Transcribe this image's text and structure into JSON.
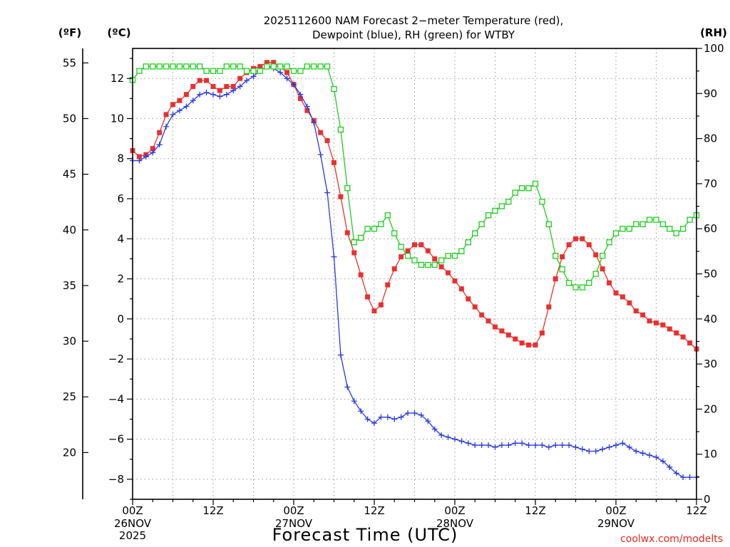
{
  "chart_data": {
    "type": "line",
    "title": "2025112600 NAM Forecast 2−meter Temperature (red),",
    "subtitle": "Dewpoint (blue), RH (green) for WTBY",
    "xlabel": "Forecast Time (UTC)",
    "credit": "coolwx.com/modelts",
    "left_axis_f": {
      "label": "(ºF)",
      "ticks": [
        20,
        25,
        30,
        35,
        40,
        45,
        50,
        55
      ],
      "tick_labels": [
        "20",
        "25",
        "30",
        "35",
        "40",
        "45",
        "50",
        "55"
      ]
    },
    "left_axis_c": {
      "label": "(ºC)",
      "ylim": [
        -9,
        13.5
      ],
      "ticks": [
        -8,
        -6,
        -4,
        -2,
        0,
        2,
        4,
        6,
        8,
        10,
        12
      ],
      "tick_labels": [
        "−8",
        "−6",
        "−4",
        "−2",
        "0",
        "2",
        "4",
        "6",
        "8",
        "10",
        "12"
      ]
    },
    "right_axis": {
      "label": "(RH)",
      "ylim": [
        0,
        100
      ],
      "ticks": [
        0,
        10,
        20,
        30,
        40,
        50,
        60,
        70,
        80,
        90,
        100
      ],
      "tick_labels": [
        "0",
        "10",
        "20",
        "30",
        "40",
        "50",
        "60",
        "70",
        "80",
        "90",
        "100"
      ]
    },
    "x_axis": {
      "xlim": [
        0,
        84
      ],
      "unit": "hours since 00Z 26NOV",
      "ticks": [
        {
          "x": 0,
          "label": "00Z",
          "date": "26NOV",
          "year": "2025"
        },
        {
          "x": 12,
          "label": "12Z",
          "date": "",
          "year": ""
        },
        {
          "x": 24,
          "label": "00Z",
          "date": "27NOV",
          "year": ""
        },
        {
          "x": 36,
          "label": "12Z",
          "date": "",
          "year": ""
        },
        {
          "x": 48,
          "label": "00Z",
          "date": "28NOV",
          "year": ""
        },
        {
          "x": 60,
          "label": "12Z",
          "date": "",
          "year": ""
        },
        {
          "x": 72,
          "label": "00Z",
          "date": "29NOV",
          "year": ""
        },
        {
          "x": 84,
          "label": "12Z",
          "date": "",
          "year": ""
        }
      ]
    },
    "series": [
      {
        "name": "2-meter Temperature",
        "color": "#e83030",
        "axis": "celsius",
        "marker": "filled-square",
        "points": [
          [
            0,
            8.4
          ],
          [
            1,
            8.1
          ],
          [
            2,
            8.2
          ],
          [
            3,
            8.5
          ],
          [
            4,
            9.3
          ],
          [
            5,
            10.2
          ],
          [
            6,
            10.7
          ],
          [
            7,
            10.9
          ],
          [
            8,
            11.2
          ],
          [
            9,
            11.6
          ],
          [
            10,
            11.9
          ],
          [
            11,
            11.9
          ],
          [
            12,
            11.6
          ],
          [
            13,
            11.4
          ],
          [
            14,
            11.6
          ],
          [
            15,
            11.6
          ],
          [
            16,
            12.0
          ],
          [
            17,
            12.3
          ],
          [
            18,
            12.5
          ],
          [
            19,
            12.6
          ],
          [
            20,
            12.8
          ],
          [
            21,
            12.8
          ],
          [
            22,
            12.6
          ],
          [
            23,
            12.3
          ],
          [
            24,
            11.7
          ],
          [
            25,
            11.0
          ],
          [
            26,
            10.4
          ],
          [
            27,
            9.9
          ],
          [
            28,
            9.3
          ],
          [
            29,
            8.9
          ],
          [
            30,
            7.8
          ],
          [
            31,
            6.1
          ],
          [
            32,
            4.3
          ],
          [
            33,
            3.3
          ],
          [
            34,
            2.2
          ],
          [
            35,
            1.1
          ],
          [
            36,
            0.4
          ],
          [
            37,
            0.7
          ],
          [
            38,
            1.7
          ],
          [
            39,
            2.5
          ],
          [
            40,
            3.1
          ],
          [
            41,
            3.4
          ],
          [
            42,
            3.7
          ],
          [
            43,
            3.7
          ],
          [
            44,
            3.4
          ],
          [
            45,
            3.0
          ],
          [
            46,
            2.6
          ],
          [
            47,
            2.3
          ],
          [
            48,
            1.9
          ],
          [
            49,
            1.5
          ],
          [
            50,
            1.0
          ],
          [
            51,
            0.6
          ],
          [
            52,
            0.2
          ],
          [
            53,
            -0.1
          ],
          [
            54,
            -0.4
          ],
          [
            55,
            -0.6
          ],
          [
            56,
            -0.8
          ],
          [
            57,
            -1.0
          ],
          [
            58,
            -1.2
          ],
          [
            59,
            -1.3
          ],
          [
            60,
            -1.3
          ],
          [
            61,
            -0.7
          ],
          [
            62,
            0.6
          ],
          [
            63,
            2.0
          ],
          [
            64,
            3.1
          ],
          [
            65,
            3.7
          ],
          [
            66,
            4.0
          ],
          [
            67,
            4.0
          ],
          [
            68,
            3.7
          ],
          [
            69,
            3.2
          ],
          [
            70,
            2.5
          ],
          [
            71,
            1.8
          ],
          [
            72,
            1.3
          ],
          [
            73,
            1.1
          ],
          [
            74,
            0.8
          ],
          [
            75,
            0.4
          ],
          [
            76,
            0.2
          ],
          [
            77,
            -0.1
          ],
          [
            78,
            -0.2
          ],
          [
            79,
            -0.3
          ],
          [
            80,
            -0.5
          ],
          [
            81,
            -0.7
          ],
          [
            82,
            -0.9
          ],
          [
            83,
            -1.2
          ],
          [
            84,
            -1.5
          ]
        ]
      },
      {
        "name": "Dewpoint",
        "color": "#2a3ae0",
        "axis": "celsius",
        "marker": "plus",
        "points": [
          [
            0,
            7.9
          ],
          [
            1,
            7.9
          ],
          [
            2,
            8.1
          ],
          [
            3,
            8.3
          ],
          [
            4,
            8.7
          ],
          [
            5,
            9.6
          ],
          [
            6,
            10.2
          ],
          [
            7,
            10.4
          ],
          [
            8,
            10.6
          ],
          [
            9,
            10.9
          ],
          [
            10,
            11.2
          ],
          [
            11,
            11.3
          ],
          [
            12,
            11.2
          ],
          [
            13,
            11.1
          ],
          [
            14,
            11.2
          ],
          [
            15,
            11.4
          ],
          [
            16,
            11.6
          ],
          [
            17,
            11.9
          ],
          [
            18,
            12.1
          ],
          [
            19,
            12.4
          ],
          [
            20,
            12.6
          ],
          [
            21,
            12.5
          ],
          [
            22,
            12.3
          ],
          [
            23,
            12.0
          ],
          [
            24,
            11.7
          ],
          [
            25,
            11.2
          ],
          [
            26,
            10.6
          ],
          [
            27,
            9.8
          ],
          [
            28,
            8.2
          ],
          [
            29,
            6.3
          ],
          [
            30,
            3.1
          ],
          [
            31,
            -1.8
          ],
          [
            32,
            -3.4
          ],
          [
            33,
            -4.1
          ],
          [
            34,
            -4.6
          ],
          [
            35,
            -5.0
          ],
          [
            36,
            -5.2
          ],
          [
            37,
            -4.9
          ],
          [
            38,
            -4.9
          ],
          [
            39,
            -5.0
          ],
          [
            40,
            -4.9
          ],
          [
            41,
            -4.7
          ],
          [
            42,
            -4.7
          ],
          [
            43,
            -4.8
          ],
          [
            44,
            -5.1
          ],
          [
            45,
            -5.5
          ],
          [
            46,
            -5.8
          ],
          [
            47,
            -5.9
          ],
          [
            48,
            -6.0
          ],
          [
            49,
            -6.1
          ],
          [
            50,
            -6.2
          ],
          [
            51,
            -6.3
          ],
          [
            52,
            -6.3
          ],
          [
            53,
            -6.3
          ],
          [
            54,
            -6.4
          ],
          [
            55,
            -6.3
          ],
          [
            56,
            -6.3
          ],
          [
            57,
            -6.2
          ],
          [
            58,
            -6.2
          ],
          [
            59,
            -6.3
          ],
          [
            60,
            -6.3
          ],
          [
            61,
            -6.3
          ],
          [
            62,
            -6.4
          ],
          [
            63,
            -6.3
          ],
          [
            64,
            -6.3
          ],
          [
            65,
            -6.3
          ],
          [
            66,
            -6.4
          ],
          [
            67,
            -6.5
          ],
          [
            68,
            -6.6
          ],
          [
            69,
            -6.6
          ],
          [
            70,
            -6.5
          ],
          [
            71,
            -6.4
          ],
          [
            72,
            -6.3
          ],
          [
            73,
            -6.2
          ],
          [
            74,
            -6.4
          ],
          [
            75,
            -6.6
          ],
          [
            76,
            -6.7
          ],
          [
            77,
            -6.8
          ],
          [
            78,
            -6.9
          ],
          [
            79,
            -7.1
          ],
          [
            80,
            -7.4
          ],
          [
            81,
            -7.7
          ],
          [
            82,
            -7.9
          ],
          [
            83,
            -7.9
          ],
          [
            84,
            -7.9
          ]
        ]
      },
      {
        "name": "Relative Humidity",
        "color": "#1fcc1f",
        "axis": "rh",
        "marker": "open-square",
        "points": [
          [
            0,
            93
          ],
          [
            1,
            95
          ],
          [
            2,
            96
          ],
          [
            3,
            96
          ],
          [
            4,
            96
          ],
          [
            5,
            96
          ],
          [
            6,
            96
          ],
          [
            7,
            96
          ],
          [
            8,
            96
          ],
          [
            9,
            96
          ],
          [
            10,
            96
          ],
          [
            11,
            95
          ],
          [
            12,
            95
          ],
          [
            13,
            95
          ],
          [
            14,
            96
          ],
          [
            15,
            96
          ],
          [
            16,
            96
          ],
          [
            17,
            95
          ],
          [
            18,
            95
          ],
          [
            19,
            95
          ],
          [
            20,
            96
          ],
          [
            21,
            96
          ],
          [
            22,
            96
          ],
          [
            23,
            96
          ],
          [
            24,
            95
          ],
          [
            25,
            95
          ],
          [
            26,
            96
          ],
          [
            27,
            96
          ],
          [
            28,
            96
          ],
          [
            29,
            96
          ],
          [
            30,
            91
          ],
          [
            31,
            82
          ],
          [
            32,
            69
          ],
          [
            33,
            57
          ],
          [
            34,
            58
          ],
          [
            35,
            60
          ],
          [
            36,
            60
          ],
          [
            37,
            61
          ],
          [
            38,
            63
          ],
          [
            39,
            59
          ],
          [
            40,
            56
          ],
          [
            41,
            54
          ],
          [
            42,
            53
          ],
          [
            43,
            52
          ],
          [
            44,
            52
          ],
          [
            45,
            52
          ],
          [
            46,
            53
          ],
          [
            47,
            54
          ],
          [
            48,
            54
          ],
          [
            49,
            55
          ],
          [
            50,
            57
          ],
          [
            51,
            59
          ],
          [
            52,
            61
          ],
          [
            53,
            63
          ],
          [
            54,
            64
          ],
          [
            55,
            65
          ],
          [
            56,
            66
          ],
          [
            57,
            68
          ],
          [
            58,
            69
          ],
          [
            59,
            69
          ],
          [
            60,
            70
          ],
          [
            61,
            66
          ],
          [
            62,
            61
          ],
          [
            63,
            54
          ],
          [
            64,
            51
          ],
          [
            65,
            48
          ],
          [
            66,
            47
          ],
          [
            67,
            47
          ],
          [
            68,
            48
          ],
          [
            69,
            50
          ],
          [
            70,
            54
          ],
          [
            71,
            57
          ],
          [
            72,
            59
          ],
          [
            73,
            60
          ],
          [
            74,
            60
          ],
          [
            75,
            61
          ],
          [
            76,
            61
          ],
          [
            77,
            62
          ],
          [
            78,
            62
          ],
          [
            79,
            61
          ],
          [
            80,
            60
          ],
          [
            81,
            59
          ],
          [
            82,
            60
          ],
          [
            83,
            62
          ],
          [
            84,
            63
          ]
        ]
      }
    ],
    "grid": true
  }
}
